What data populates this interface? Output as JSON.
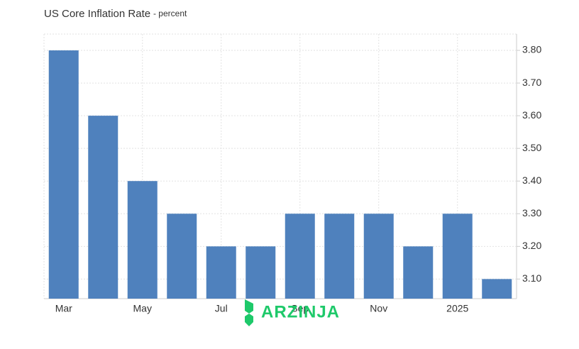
{
  "chart_data": {
    "type": "bar",
    "title": "US Core Inflation Rate",
    "subtitle": "- percent",
    "categories": [
      "Mar",
      null,
      "May",
      null,
      "Jul",
      null,
      "Sep",
      null,
      "Nov",
      null,
      "2025",
      null
    ],
    "values": [
      3.8,
      3.6,
      3.4,
      3.3,
      3.2,
      3.2,
      3.3,
      3.3,
      3.3,
      3.2,
      3.3,
      3.1
    ],
    "color": "#4f81bd",
    "ylim": [
      3.04,
      3.85
    ],
    "yticks": [
      {
        "value": 3.1,
        "label": "3.10"
      },
      {
        "value": 3.2,
        "label": "3.20"
      },
      {
        "value": 3.3,
        "label": "3.30"
      },
      {
        "value": 3.4,
        "label": "3.40"
      },
      {
        "value": 3.5,
        "label": "3.50"
      },
      {
        "value": 3.6,
        "label": "3.60"
      },
      {
        "value": 3.7,
        "label": "3.70"
      },
      {
        "value": 3.8,
        "label": "3.80"
      }
    ],
    "grid": true,
    "watermark": "ARZINJA"
  }
}
